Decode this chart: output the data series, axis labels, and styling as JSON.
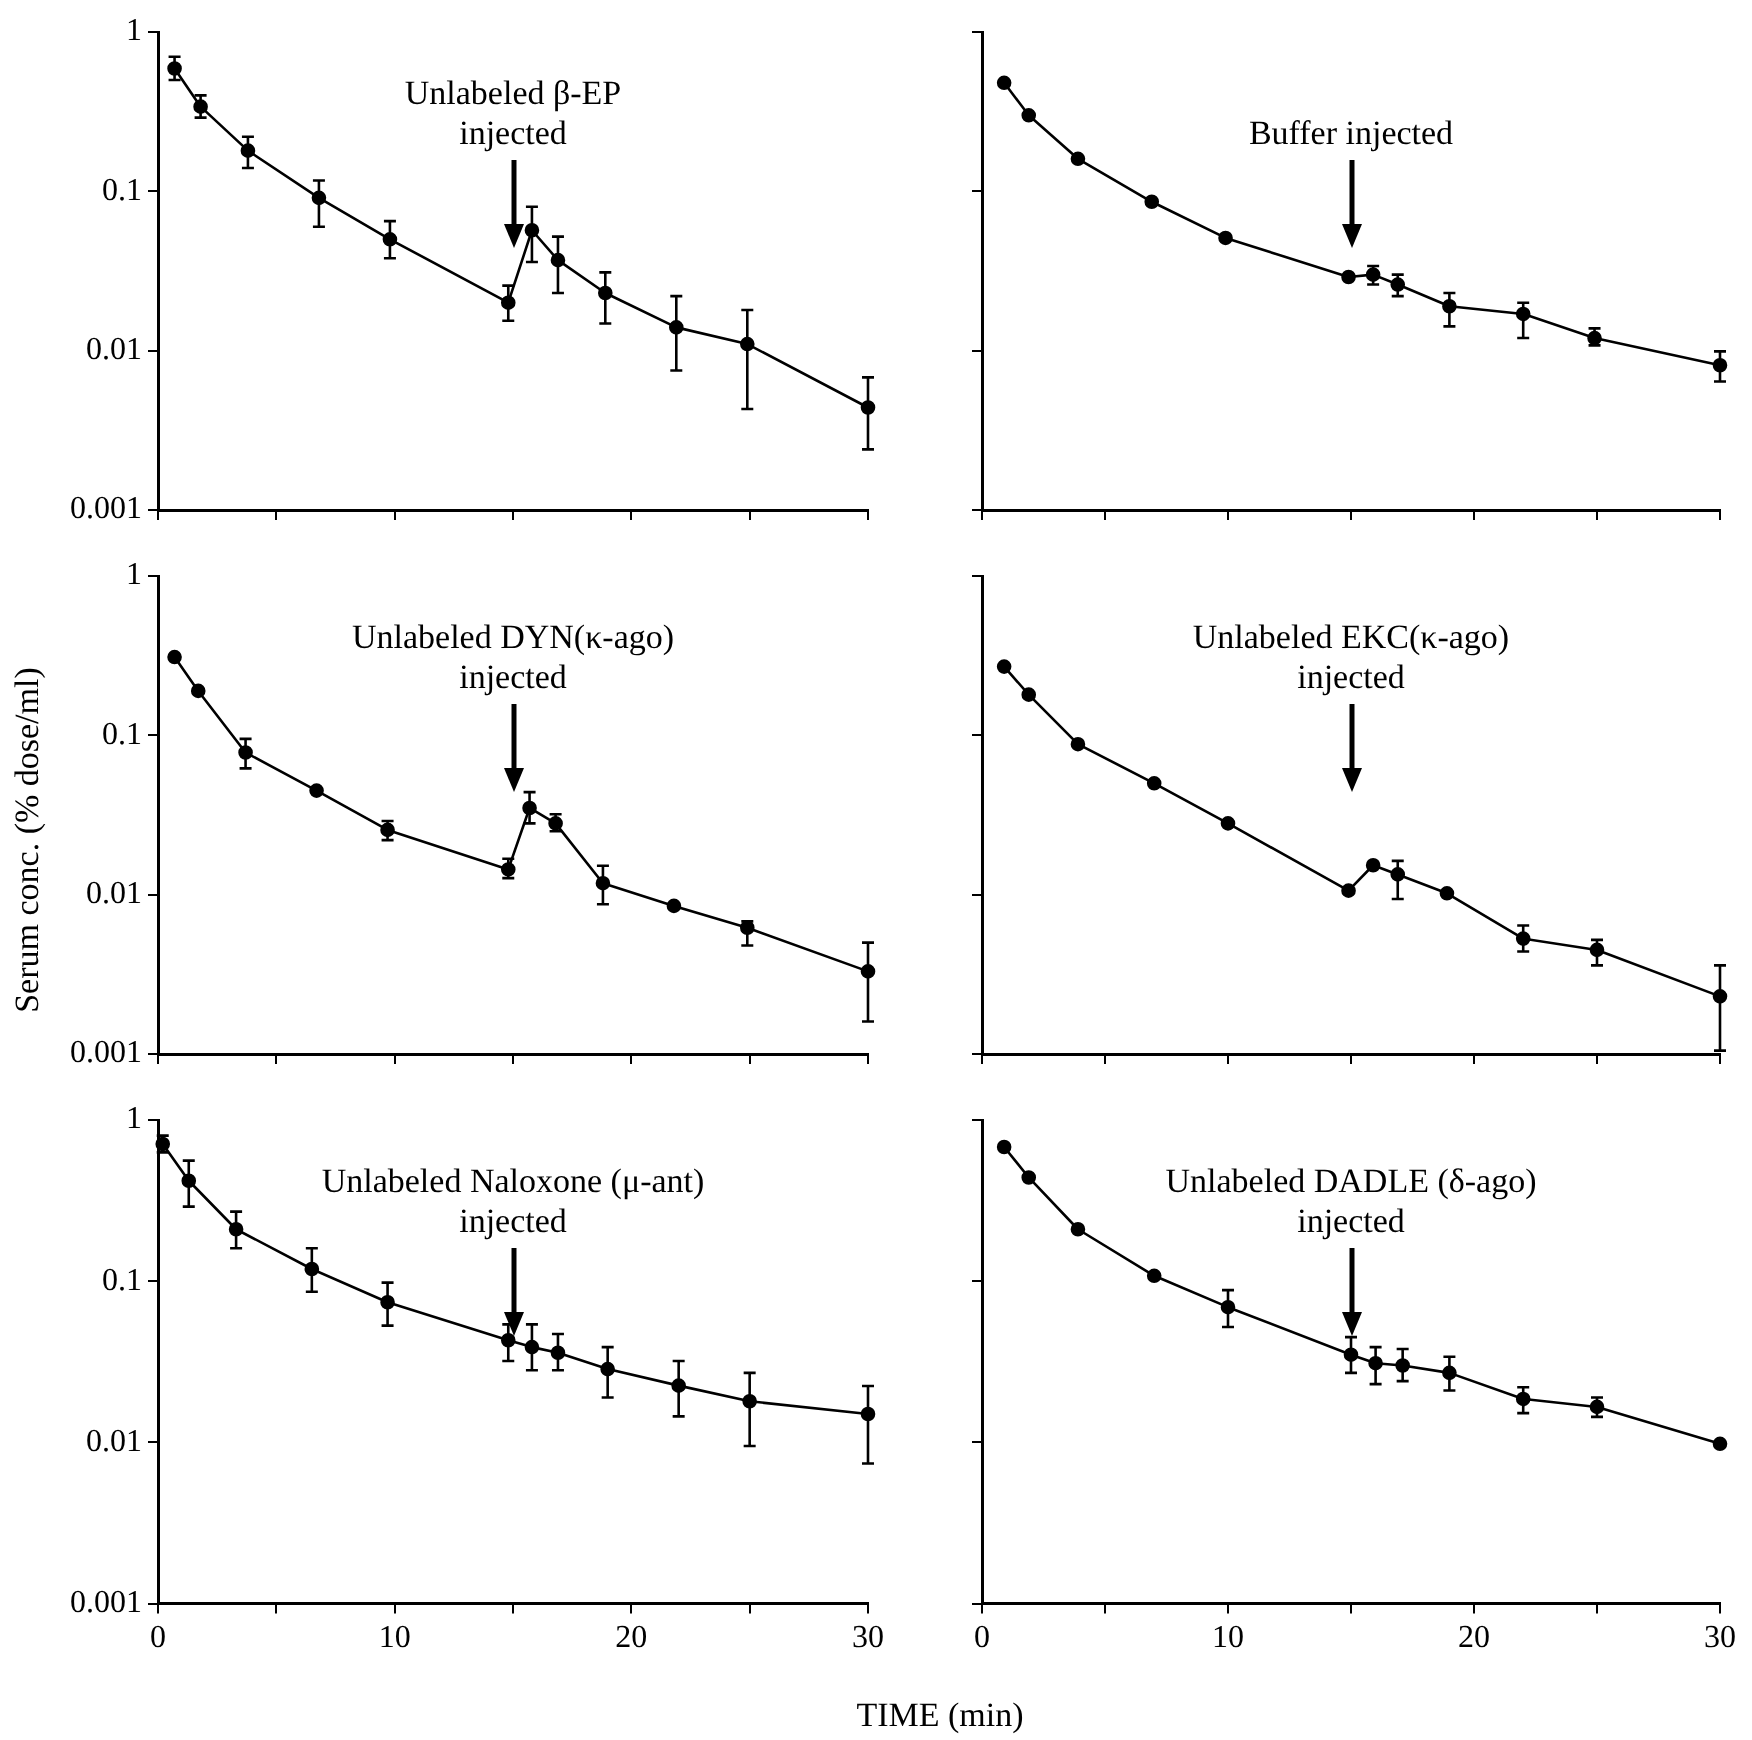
{
  "chart_data": [
    {
      "type": "line",
      "xlim": [
        0,
        30
      ],
      "xticks": [
        0,
        {
          "value": 5,
          "label": null
        },
        10,
        {
          "value": 15,
          "label": null
        },
        20,
        {
          "value": 25,
          "label": null
        },
        30
      ],
      "ylim": [
        0.001,
        1
      ],
      "yticks": [
        0.001,
        0.01,
        0.1,
        1
      ],
      "log": "y",
      "tick_labels": "y",
      "marker": "circle",
      "x": [
        0.7,
        1.8,
        3.8,
        6.8,
        9.8,
        14.8,
        15.8,
        16.9,
        18.9,
        21.9,
        24.9,
        30
      ],
      "series": [
        {
          "color": "#000000",
          "values": [
            0.59,
            0.34,
            0.18,
            0.091,
            0.05,
            0.02,
            0.057,
            0.037,
            0.023,
            0.014,
            0.011,
            0.0044
          ],
          "errors": [
            [
              0.5,
              0.7
            ],
            [
              0.29,
              0.4
            ],
            [
              0.14,
              0.22
            ],
            [
              0.06,
              0.117
            ],
            [
              0.038,
              0.065
            ],
            [
              0.0154,
              0.0256
            ],
            [
              0.036,
              0.08
            ],
            [
              0.023,
              0.052
            ],
            [
              0.0148,
              0.031
            ],
            [
              0.0075,
              0.022
            ],
            [
              0.0043,
              0.018
            ],
            [
              0.0024,
              0.0068
            ]
          ]
        }
      ],
      "annotations": [
        "Unlabeled β-EP\ninjected"
      ]
    },
    {
      "type": "line",
      "xlim": [
        0,
        30
      ],
      "xticks": [
        0,
        {
          "value": 5,
          "label": null
        },
        10,
        {
          "value": 15,
          "label": null
        },
        20,
        {
          "value": 25,
          "label": null
        },
        30
      ],
      "ylim": [
        0.001,
        1
      ],
      "yticks": [
        0.001,
        0.01,
        0.1,
        1
      ],
      "log": "y",
      "tick_labels": false,
      "marker": "circle",
      "x": [
        0.9,
        1.9,
        3.9,
        6.9,
        9.9,
        14.9,
        15.9,
        16.9,
        19,
        22,
        24.9,
        30
      ],
      "series": [
        {
          "color": "#000000",
          "values": [
            0.48,
            0.3,
            0.16,
            0.086,
            0.051,
            0.029,
            0.03,
            0.026,
            0.019,
            0.017,
            0.012,
            0.0081
          ],
          "errors": [
            null,
            null,
            null,
            null,
            null,
            null,
            [
              0.026,
              0.034
            ],
            [
              0.022,
              0.03
            ],
            [
              0.0142,
              0.023
            ],
            [
              0.012,
              0.02
            ],
            [
              0.0108,
              0.0138
            ],
            [
              0.0064,
              0.0099
            ]
          ]
        }
      ],
      "annotations": [
        "Buffer injected"
      ]
    },
    {
      "type": "line",
      "xlim": [
        0,
        30
      ],
      "xticks": [
        0,
        {
          "value": 5,
          "label": null
        },
        10,
        {
          "value": 15,
          "label": null
        },
        20,
        {
          "value": 25,
          "label": null
        },
        30
      ],
      "ylim": [
        0.001,
        1
      ],
      "yticks": [
        0.001,
        0.01,
        0.1,
        1
      ],
      "log": "y",
      "tick_labels": "y",
      "marker": "circle",
      "x": [
        0.7,
        1.7,
        3.7,
        6.7,
        9.7,
        14.8,
        15.7,
        16.8,
        18.8,
        21.8,
        24.9,
        30
      ],
      "series": [
        {
          "color": "#000000",
          "values": [
            0.31,
            0.19,
            0.078,
            0.045,
            0.0255,
            0.0144,
            0.035,
            0.028,
            0.0118,
            0.0085,
            0.0062,
            0.0033
          ],
          "errors": [
            null,
            null,
            [
              0.062,
              0.095
            ],
            null,
            [
              0.022,
              0.029
            ],
            [
              0.0127,
              0.0168
            ],
            [
              0.028,
              0.044
            ],
            [
              0.025,
              0.032
            ],
            [
              0.0087,
              0.0152
            ],
            null,
            [
              0.0048,
              0.0068
            ],
            [
              0.0016,
              0.005
            ]
          ]
        }
      ],
      "annotations": [
        "Unlabeled DYN(κ-ago)\ninjected"
      ],
      "ylabel": "Serum conc. (% dose/ml)"
    },
    {
      "type": "line",
      "xlim": [
        0,
        30
      ],
      "xticks": [
        0,
        {
          "value": 5,
          "label": null
        },
        10,
        {
          "value": 15,
          "label": null
        },
        20,
        {
          "value": 25,
          "label": null
        },
        30
      ],
      "ylim": [
        0.001,
        1
      ],
      "yticks": [
        0.001,
        0.01,
        0.1,
        1
      ],
      "log": "y",
      "tick_labels": false,
      "marker": "circle",
      "x": [
        0.9,
        1.9,
        3.9,
        7,
        10,
        14.9,
        15.9,
        16.9,
        18.9,
        22,
        25,
        30
      ],
      "series": [
        {
          "color": "#000000",
          "values": [
            0.27,
            0.18,
            0.088,
            0.05,
            0.028,
            0.0106,
            0.0153,
            0.0134,
            0.0102,
            0.0053,
            0.0045,
            0.0023
          ],
          "errors": [
            null,
            null,
            null,
            null,
            null,
            null,
            null,
            [
              0.0094,
              0.0163
            ],
            null,
            [
              0.0044,
              0.0064
            ],
            [
              0.0036,
              0.0052
            ],
            [
              0.00105,
              0.0036
            ]
          ]
        }
      ],
      "annotations": [
        "Unlabeled EKC(κ-ago)\ninjected"
      ]
    },
    {
      "type": "line",
      "xlim": [
        0,
        30
      ],
      "xticks": [
        0,
        {
          "value": 5,
          "label": null
        },
        10,
        {
          "value": 15,
          "label": null
        },
        20,
        {
          "value": 25,
          "label": null
        },
        30
      ],
      "ylim": [
        0.001,
        1
      ],
      "yticks": [
        0.001,
        0.01,
        0.1,
        1
      ],
      "log": "y",
      "marker": "circle",
      "x": [
        0.2,
        1.3,
        3.3,
        6.5,
        9.7,
        14.8,
        15.8,
        16.9,
        19,
        22,
        25,
        30
      ],
      "series": [
        {
          "color": "#000000",
          "values": [
            0.71,
            0.42,
            0.21,
            0.119,
            0.074,
            0.043,
            0.039,
            0.036,
            0.0285,
            0.0225,
            0.018,
            0.015
          ],
          "errors": [
            [
              0.63,
              0.8
            ],
            [
              0.29,
              0.56
            ],
            [
              0.16,
              0.27
            ],
            [
              0.086,
              0.16
            ],
            [
              0.053,
              0.098
            ],
            [
              0.032,
              0.054
            ],
            [
              0.028,
              0.054
            ],
            [
              0.028,
              0.047
            ],
            [
              0.019,
              0.039
            ],
            [
              0.0145,
              0.032
            ],
            [
              0.0095,
              0.027
            ],
            [
              0.0074,
              0.0224
            ]
          ]
        }
      ],
      "annotations": [
        "Unlabeled Naloxone (μ-ant)\ninjected"
      ]
    },
    {
      "type": "line",
      "xlim": [
        0,
        30
      ],
      "xticks": [
        0,
        {
          "value": 5,
          "label": null
        },
        10,
        {
          "value": 15,
          "label": null
        },
        20,
        {
          "value": 25,
          "label": null
        },
        30
      ],
      "ylim": [
        0.001,
        1
      ],
      "yticks": [
        0.001,
        0.01,
        0.1,
        1
      ],
      "log": "y",
      "tick_labels": "x",
      "marker": "circle",
      "x": [
        0.9,
        1.9,
        3.9,
        7,
        10,
        15,
        16,
        17.1,
        19,
        22,
        25,
        30
      ],
      "series": [
        {
          "color": "#000000",
          "values": [
            0.68,
            0.44,
            0.21,
            0.108,
            0.069,
            0.035,
            0.031,
            0.03,
            0.027,
            0.0186,
            0.0166,
            0.0098
          ],
          "errors": [
            null,
            null,
            null,
            null,
            [
              0.052,
              0.088
            ],
            [
              0.027,
              0.045
            ],
            [
              0.023,
              0.039
            ],
            [
              0.024,
              0.038
            ],
            [
              0.021,
              0.034
            ],
            [
              0.0152,
              0.022
            ],
            [
              0.0144,
              0.019
            ],
            null
          ]
        }
      ],
      "annotations": [
        "Unlabeled DADLE (δ-ago)\ninjected"
      ],
      "xlabel": "TIME (min)"
    }
  ]
}
